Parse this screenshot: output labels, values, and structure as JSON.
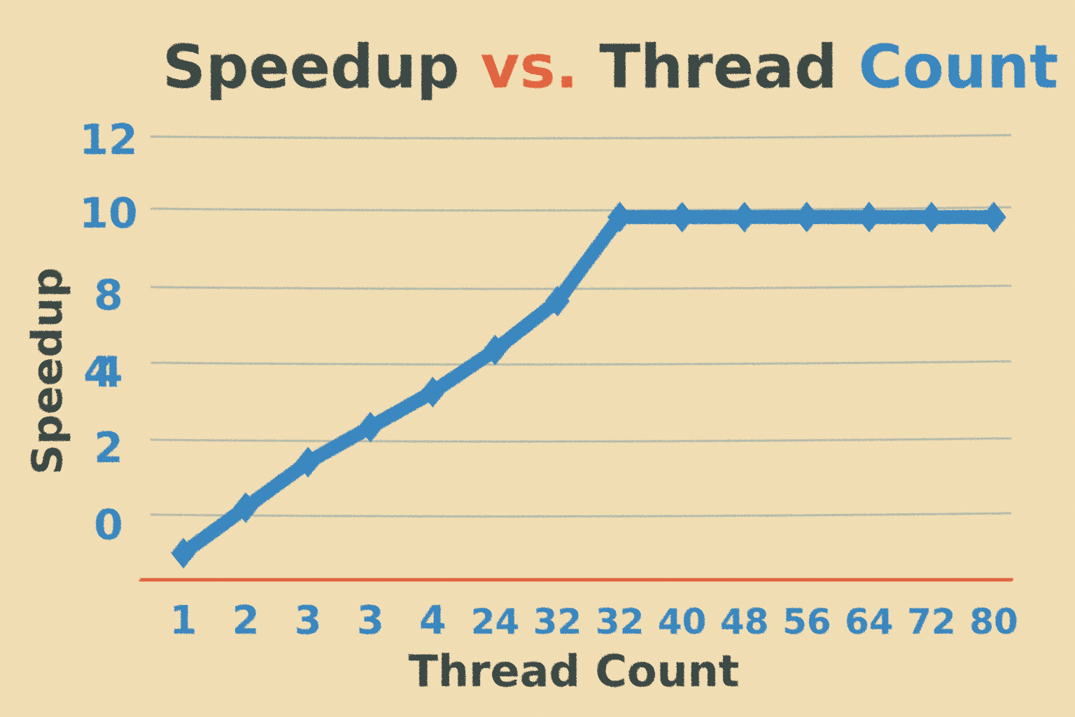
{
  "chart_data": {
    "type": "line",
    "title_parts": [
      {
        "text": "Speedup ",
        "color": "#3d4a45"
      },
      {
        "text": "vs.",
        "color": "#e0653f"
      },
      {
        "text": " Thread ",
        "color": "#3d4a45"
      },
      {
        "text": "Count",
        "color": "#3a87bf"
      }
    ],
    "xlabel": "Thread Count",
    "ylabel": "Speedup",
    "categories": [
      "1",
      "2",
      "3",
      "3",
      "4",
      "24",
      "32",
      "32",
      "40",
      "48",
      "56",
      "64",
      "72",
      "80"
    ],
    "yticks": [
      "0",
      "2",
      "4",
      "4",
      "8",
      "10",
      "12"
    ],
    "series": [
      {
        "values": [
          0,
          1.3,
          2.6,
          3.6,
          4.6,
          5.8,
          7.2,
          9.6,
          9.6,
          9.6,
          9.6,
          9.6,
          9.6,
          9.6
        ]
      }
    ],
    "grid": true,
    "colors": {
      "background": "#f3dfb5",
      "axis": "#e0653f",
      "line": "#3a87bf",
      "grid": "#8aa2a4",
      "label": "#3d4a45",
      "ticks": "#3a87bf"
    }
  }
}
